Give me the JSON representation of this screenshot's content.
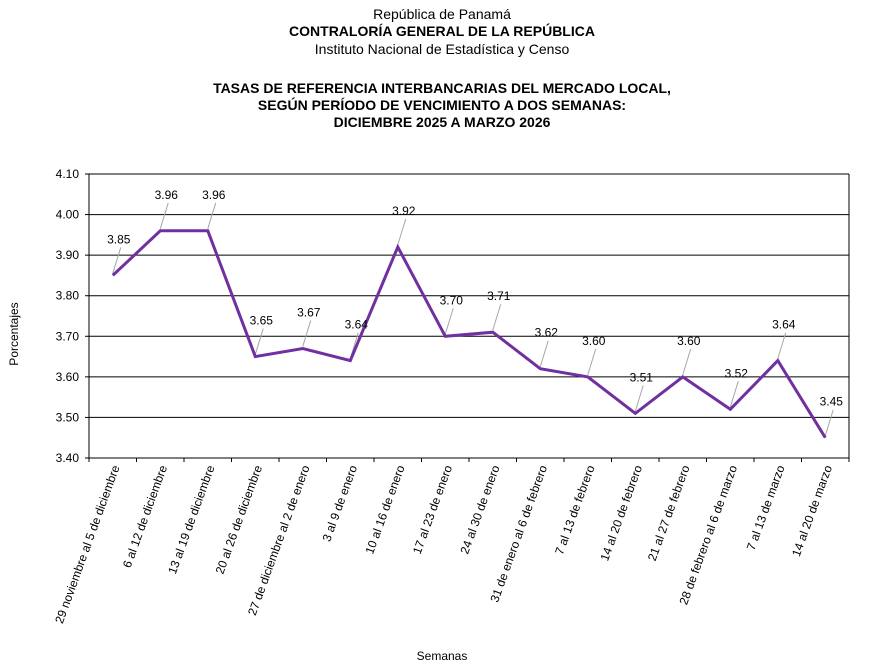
{
  "header": {
    "line1": "República de Panamá",
    "line2": "CONTRALORÍA GENERAL DE LA REPÚBLICA",
    "line3": "Instituto  Nacional de Estadística  y Censo"
  },
  "chart_data": {
    "type": "line",
    "title": [
      "TASAS DE REFERENCIA INTERBANCARIAS DEL MERCADO LOCAL,",
      "SEGÚN PERÍODO DE VENCIMIENTO A DOS SEMANAS:",
      "DICIEMBRE 2025 A MARZO 2026"
    ],
    "xlabel": "Semanas",
    "ylabel": "Porcentajes",
    "ylim": [
      3.4,
      4.1
    ],
    "yticks": [
      "3.40",
      "3.50",
      "3.60",
      "3.70",
      "3.80",
      "3.90",
      "4.00",
      "4.10"
    ],
    "grid": true,
    "line_color": "#7030A0",
    "categories": [
      "29 noviembre al 5 de diciembre",
      "6 al 12 de diciembre",
      "13 al 19 de diciembre",
      "20 al 26 de diciembre",
      "27 de diciembre al 2 de enero",
      "3 al 9 de enero",
      "10 al 16 de enero",
      "17 al 23 de enero",
      "24 al 30 de enero",
      "31 de enero al 6 de febrero",
      "7 al 13 de febrero",
      "14 al 20 de febrero",
      "21 al 27 de febrero",
      "28 de febrero al 6 de marzo",
      "7 al 13 de marzo",
      "14 al 20 de marzo"
    ],
    "values": [
      3.85,
      3.96,
      3.96,
      3.65,
      3.67,
      3.64,
      3.92,
      3.7,
      3.71,
      3.62,
      3.6,
      3.51,
      3.6,
      3.52,
      3.64,
      3.45
    ],
    "value_labels": [
      "3.85",
      "3.96",
      "3.96",
      "3.65",
      "3.67",
      "3.64",
      "3.92",
      "3.70",
      "3.71",
      "3.62",
      "3.60",
      "3.51",
      "3.60",
      "3.52",
      "3.64",
      "3.45"
    ]
  }
}
